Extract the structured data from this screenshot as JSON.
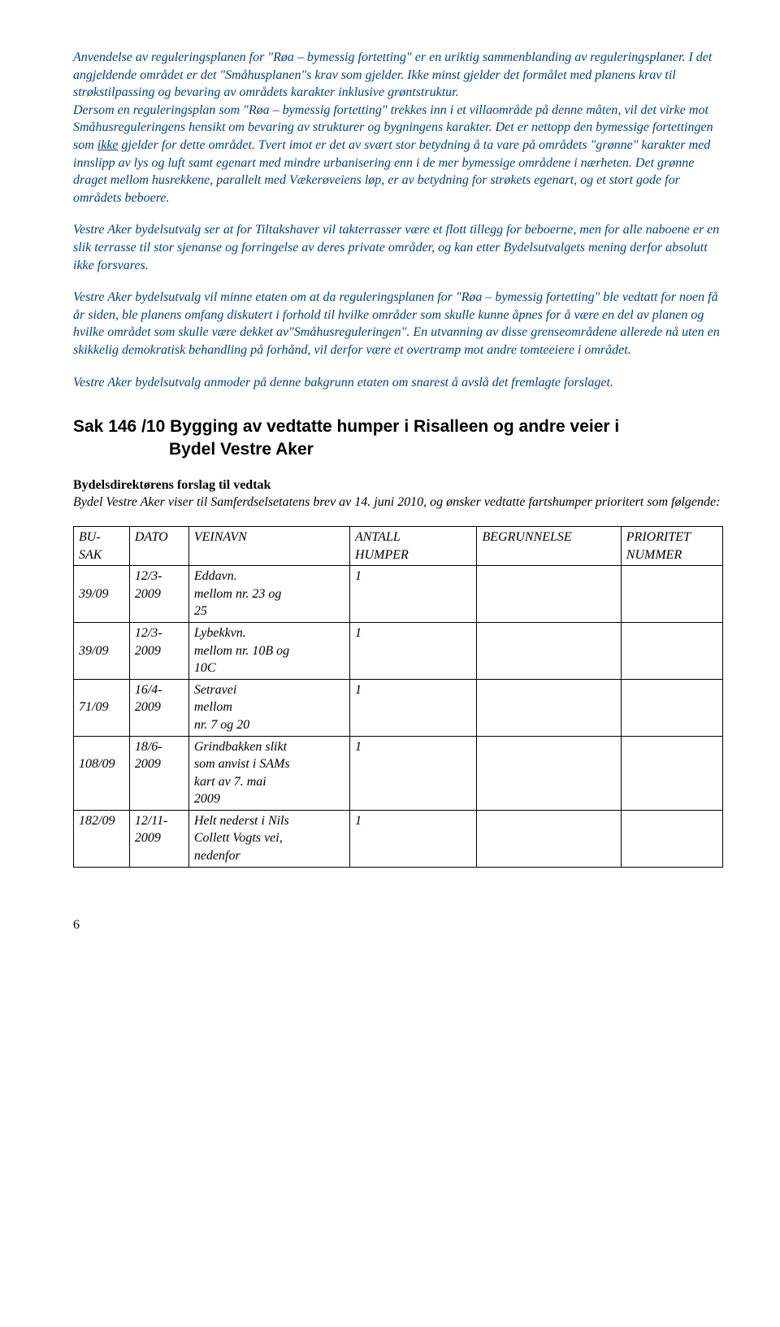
{
  "p1_a": "Anvendelse av reguleringsplanen for \"Røa – bymessig fortetting\" er en  uriktig sammenblanding av reguleringsplaner.  I det angjeldende området er det \"Småhusplanen\"s krav som gjelder.",
  "p1_b": "Ikke minst gjelder det formålet med planens krav til strøkstilpassing og bevaring av områdets karakter inklusive grøntstruktur.",
  "p1_c": "Dersom en reguleringsplan som \"Røa – bymessig fortetting\" trekkes inn i et villaområde på denne måten, vil det virke mot Småhusreguleringens hensikt om bevaring av strukturer og bygningens karakter. Det er nettopp den bymessige fortettingen som ",
  "p1_c_u": "ikke",
  "p1_c2": " gjelder for dette området. Tvert imot er det av svært stor betydning å ta vare på områdets \"grønne\" karakter med innslipp av lys og luft samt egenart med mindre urbanisering enn i de mer bymessige områdene i nærheten. Det grønne draget mellom husrekkene, parallelt med Vækerøveiens løp, er av betydning for strøkets egenart, og et stort gode for områdets beboere.",
  "p2": "Vestre Aker bydelsutvalg ser at for Tiltakshaver vil takterrasser være et flott tillegg for beboerne, men for alle naboene er en slik terrasse til stor sjenanse og forringelse av deres private områder, og kan etter Bydelsutvalgets mening derfor absolutt ikke forsvares.",
  "p3": "Vestre Aker bydelsutvalg vil minne etaten om at da reguleringsplanen for \"Røa – bymessig fortetting\" ble vedtatt for noen få år siden, ble planens omfang diskutert i forhold til hvilke områder som skulle kunne åpnes for å være en del av planen og hvilke området som skulle være dekket av\"Småhusreguleringen\". En utvanning av disse grenseområdene allerede nå uten en skikkelig demokratisk behandling på forhånd, vil derfor være et overtramp mot andre tomteeiere i området.",
  "p4": "Vestre Aker bydelsutvalg anmoder på denne bakgrunn etaten om snarest å avslå det fremlagte forslaget.",
  "section_title_line1": "Sak 146 /10  Bygging av vedtatte humper i Risalleen og andre veier i",
  "section_title_line2": "Bydel Vestre Aker",
  "subhead": "Bydelsdirektørens forslag til vedtak",
  "intro": "Bydel Vestre Aker viser til Samferdselsetatens brev av 14. juni 2010, og ønsker vedtatte fartshumper prioritert som følgende:",
  "table": {
    "headers": {
      "sak1": "BU-",
      "sak2": "SAK",
      "dato": "DATO",
      "vei": "VEINAVN",
      "ant1": "ANTALL",
      "ant2": "HUMPER",
      "beg": "BEGRUNNELSE",
      "pri1": "PRIORITET",
      "pri2": "NUMMER"
    },
    "rows": [
      {
        "sak": "39/09",
        "dato1": "12/3-",
        "dato2": "2009",
        "vei1": "Eddavn.",
        "vei2": "mellom  nr.  23  og",
        "vei3": "25",
        "ant": "1",
        "beg": "",
        "pri": ""
      },
      {
        "sak": "39/09",
        "dato1": "12/3-",
        "dato2": "2009",
        "vei1": "Lybekkvn.",
        "vei2": "mellom nr. 10B og",
        "vei3": "10C",
        "ant": "1",
        "beg": "",
        "pri": ""
      },
      {
        "sak": "71/09",
        "dato1": "16/4-",
        "dato2": "2009",
        "vei1": "Setravei",
        "vei2": "mellom",
        "vei3": "nr. 7 og 20",
        "ant": "1",
        "beg": "",
        "pri": ""
      },
      {
        "sak": "108/09",
        "dato1": "18/6-",
        "dato2": "2009",
        "vei1": "Grindbakken slikt",
        "vei2": "som anvist i SAMs",
        "vei3": "kart av 7. mai",
        "vei4": "2009",
        "ant": "1",
        "beg": "",
        "pri": ""
      },
      {
        "sak": "182/09",
        "dato1": "12/11-",
        "dato2": "2009",
        "vei1": "Helt nederst i Nils",
        "vei2": "Collett Vogts vei,",
        "vei3": "nedenfor",
        "ant": "1",
        "beg": "",
        "pri": ""
      }
    ]
  },
  "pagenum": "6"
}
